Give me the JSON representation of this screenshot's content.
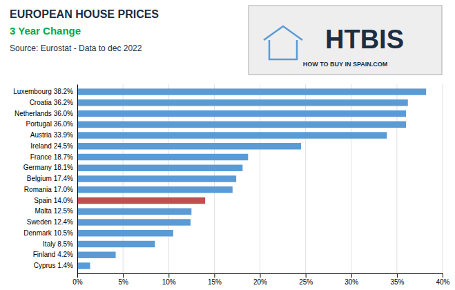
{
  "chart_data": {
    "type": "bar",
    "orientation": "horizontal",
    "title": "EUROPEAN HOUSE PRICES",
    "subtitle": "3 Year Change",
    "annotations": [
      "Source: Eurostat - Data to dec 2022",
      "HTBIS",
      "HOW TO BUY IN SPAIN.COM"
    ],
    "categories": [
      "Cyprus 1.4%",
      "Finland 4.2%",
      "Italy 8.5%",
      "Denmark 10.5%",
      "Sweden 12.4%",
      "Malta 12.5%",
      "Spain 14.0%",
      "Romania 17.0%",
      "Belgium 17.4%",
      "Germany 18.1%",
      "France 18.7%",
      "Ireland 24.5%",
      "Austria 33.9%",
      "Portugal 36.0%",
      "Netherlands 36.0%",
      "Croatia 36.2%",
      "Luxembourg 38.2%"
    ],
    "values": [
      1.4,
      4.2,
      8.5,
      10.5,
      12.4,
      12.5,
      14.0,
      17.0,
      17.4,
      18.1,
      18.7,
      24.5,
      33.9,
      36.0,
      36.0,
      36.2,
      38.2
    ],
    "colors": [
      "#5b9bd5",
      "#5b9bd5",
      "#5b9bd5",
      "#5b9bd5",
      "#5b9bd5",
      "#5b9bd5",
      "#c0504d",
      "#5b9bd5",
      "#5b9bd5",
      "#5b9bd5",
      "#5b9bd5",
      "#5b9bd5",
      "#5b9bd5",
      "#5b9bd5",
      "#5b9bd5",
      "#5b9bd5",
      "#5b9bd5"
    ],
    "xlim": [
      0,
      40
    ],
    "xticks": [
      {
        "value": 0,
        "label": "0%"
      },
      {
        "value": 5,
        "label": "5%"
      },
      {
        "value": 10,
        "label": "10%"
      },
      {
        "value": 15,
        "label": "15%"
      },
      {
        "value": 20,
        "label": "20%"
      },
      {
        "value": 25,
        "label": "25%"
      },
      {
        "value": 30,
        "label": "30%"
      },
      {
        "value": 35,
        "label": "35%"
      },
      {
        "value": 40,
        "label": "40%"
      }
    ],
    "grid": true
  }
}
